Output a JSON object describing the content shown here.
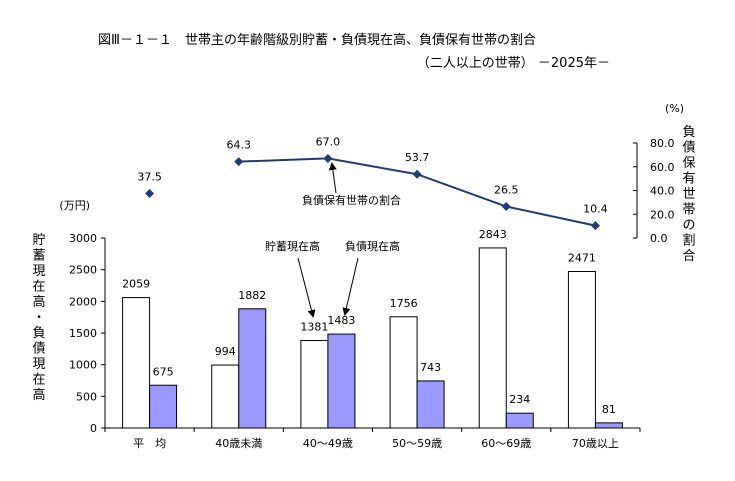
{
  "figure": {
    "title_line1": "図Ⅲ－１－１　世帯主の年齢階級別貯蓄・負債現在高、負債保有世帯の割合",
    "title_line2": "（二人以上の世帯） －2025年－"
  },
  "chart_data": {
    "type": "bar",
    "categories": [
      "平　均",
      "40歳未満",
      "40～49歳",
      "50～59歳",
      "60～69歳",
      "70歳以上"
    ],
    "series": [
      {
        "name": "貯蓄現在高",
        "values": [
          2059,
          994,
          1381,
          1756,
          2843,
          2471
        ],
        "color": "#ffffff"
      },
      {
        "name": "負債現在高",
        "values": [
          675,
          1882,
          1483,
          743,
          234,
          81
        ],
        "color": "#9999ff"
      }
    ],
    "line_series": {
      "name": "負債保有世帯の割合",
      "values": [
        37.5,
        64.3,
        67.0,
        53.7,
        26.5,
        10.4
      ],
      "value_labels": [
        "37.5",
        "64.3",
        "67.0",
        "53.7",
        "26.5",
        "10.4"
      ],
      "color": "#1f3a7a",
      "line_starts_at_index": 1
    },
    "y_left": {
      "unit": "(万円)",
      "label": "貯蓄現在高・負債現在高",
      "ylim": [
        0,
        3000
      ],
      "ticks": [
        0,
        500,
        1000,
        1500,
        2000,
        2500,
        3000
      ]
    },
    "y_right": {
      "unit": "(%)",
      "label": "負債保有世帯の割合",
      "ylim": [
        0,
        80
      ],
      "ticks": [
        "0.0",
        "20.0",
        "40.0",
        "60.0",
        "80.0"
      ]
    },
    "annotations": {
      "savings": "貯蓄現在高",
      "debt": "負債現在高",
      "line": "負債保有世帯の割合"
    }
  }
}
